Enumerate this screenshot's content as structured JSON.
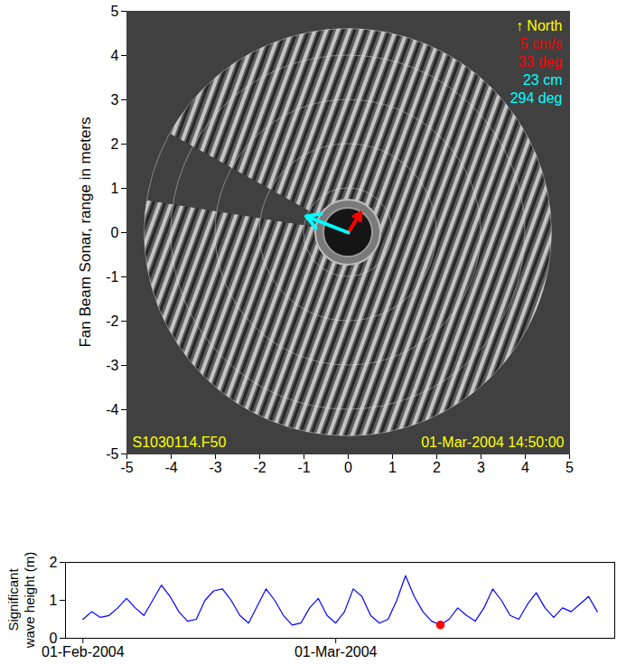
{
  "chart_data": [
    {
      "type": "sonar_image",
      "ylabel": "Fan Beam Sonar, range in meters",
      "xlim": [
        -5,
        5
      ],
      "ylim": [
        -5,
        5
      ],
      "xticks": [
        -5,
        -4,
        -3,
        -2,
        -1,
        0,
        1,
        2,
        3,
        4,
        5
      ],
      "yticks": [
        -5,
        -4,
        -3,
        -2,
        -1,
        0,
        1,
        2,
        3,
        4,
        5
      ],
      "disc_radius": 4.6,
      "range_rings": [
        1,
        2,
        3,
        4
      ],
      "blank_sector_deg": [
        151,
        171
      ],
      "annotations": [
        {
          "text": "↑ North",
          "color": "#ffff00"
        },
        {
          "text": "5 cm/s",
          "color": "#ff0000"
        },
        {
          "text": "33 deg",
          "color": "#ff0000"
        },
        {
          "text": "23 cm",
          "color": "#00ffff"
        },
        {
          "text": "294 deg",
          "color": "#00ffff"
        }
      ],
      "arrows": [
        {
          "color": "#ff0000",
          "x": [
            0,
            0.28
          ],
          "y": [
            0,
            0.45
          ]
        },
        {
          "color": "#00ffff",
          "x": [
            0,
            -0.95
          ],
          "y": [
            0,
            0.37
          ]
        }
      ],
      "file_label": "S1030114.F50",
      "timestamp": "01-Mar-2004 14:50:00",
      "label_color": "#ffff00"
    },
    {
      "type": "line",
      "ylabel": "Significant wave height (m)",
      "x": [
        "2004-02-01",
        "2004-02-02",
        "2004-02-03",
        "2004-02-04",
        "2004-02-05",
        "2004-02-06",
        "2004-02-07",
        "2004-02-08",
        "2004-02-09",
        "2004-02-10",
        "2004-02-11",
        "2004-02-12",
        "2004-02-13",
        "2004-02-14",
        "2004-02-15",
        "2004-02-16",
        "2004-02-17",
        "2004-02-18",
        "2004-02-19",
        "2004-02-20",
        "2004-02-21",
        "2004-02-22",
        "2004-02-23",
        "2004-02-24",
        "2004-02-25",
        "2004-02-26",
        "2004-02-27",
        "2004-02-28",
        "2004-02-29",
        "2004-03-01",
        "2004-03-02",
        "2004-03-03",
        "2004-03-04",
        "2004-03-05",
        "2004-03-06",
        "2004-03-07",
        "2004-03-08",
        "2004-03-09",
        "2004-03-10",
        "2004-03-11",
        "2004-03-12",
        "2004-03-13",
        "2004-03-14",
        "2004-03-15",
        "2004-03-16",
        "2004-03-17",
        "2004-03-18",
        "2004-03-19",
        "2004-03-20",
        "2004-03-21",
        "2004-03-22",
        "2004-03-23",
        "2004-03-24",
        "2004-03-25",
        "2004-03-26",
        "2004-03-27",
        "2004-03-28",
        "2004-03-29",
        "2004-03-30",
        "2004-03-31"
      ],
      "values": [
        0.5,
        0.7,
        0.55,
        0.6,
        0.8,
        1.05,
        0.8,
        0.6,
        1.0,
        1.4,
        1.1,
        0.7,
        0.45,
        0.5,
        1.0,
        1.25,
        1.3,
        1.0,
        0.6,
        0.4,
        0.85,
        1.3,
        1.0,
        0.6,
        0.35,
        0.4,
        0.8,
        1.05,
        0.6,
        0.4,
        0.7,
        1.3,
        1.1,
        0.6,
        0.4,
        0.5,
        1.0,
        1.65,
        1.1,
        0.7,
        0.45,
        0.35,
        0.5,
        0.8,
        0.6,
        0.45,
        0.8,
        1.3,
        1.0,
        0.6,
        0.5,
        0.9,
        1.2,
        0.8,
        0.55,
        0.8,
        0.7,
        0.9,
        1.1,
        0.7
      ],
      "color": "#0000ff",
      "xlim": [
        "2004-01-30",
        "2004-04-02"
      ],
      "xticks": [
        {
          "value": "2004-02-01",
          "label": "01-Feb-2004"
        },
        {
          "value": "2004-03-01",
          "label": "01-Mar-2004"
        }
      ],
      "ylim": [
        0,
        2
      ],
      "yticks": [
        0,
        1,
        2
      ],
      "highlight": {
        "x": "2004-03-13",
        "value": 0.35,
        "color": "#ff0000"
      }
    }
  ]
}
